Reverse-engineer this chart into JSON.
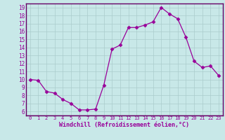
{
  "x": [
    0,
    1,
    2,
    3,
    4,
    5,
    6,
    7,
    8,
    9,
    10,
    11,
    12,
    13,
    14,
    15,
    16,
    17,
    18,
    19,
    20,
    21,
    22,
    23
  ],
  "y": [
    10,
    9.9,
    8.5,
    8.3,
    7.5,
    7.0,
    6.2,
    6.2,
    6.3,
    9.3,
    13.8,
    14.3,
    16.5,
    16.5,
    16.8,
    17.2,
    19.0,
    18.2,
    17.6,
    15.3,
    12.3,
    11.5,
    11.7,
    10.5
  ],
  "line_color": "#990099",
  "marker": "D",
  "marker_size": 2.5,
  "bg_color": "#c8e8e8",
  "grid_color": "#aacccc",
  "xlabel": "Windchill (Refroidissement éolien,°C)",
  "xlim": [
    -0.5,
    23.5
  ],
  "ylim": [
    5.5,
    19.5
  ],
  "yticks": [
    6,
    7,
    8,
    9,
    10,
    11,
    12,
    13,
    14,
    15,
    16,
    17,
    18,
    19
  ],
  "xticks": [
    0,
    1,
    2,
    3,
    4,
    5,
    6,
    7,
    8,
    9,
    10,
    11,
    12,
    13,
    14,
    15,
    16,
    17,
    18,
    19,
    20,
    21,
    22,
    23
  ],
  "tick_color": "#990099",
  "axis_color": "#990099",
  "font_color": "#990099",
  "border_color": "#660066"
}
